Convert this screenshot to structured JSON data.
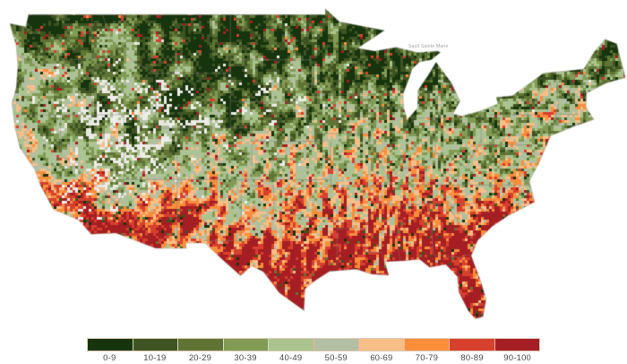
{
  "page": {
    "background": "#ffffff"
  },
  "map": {
    "name": "United States county-level choropleth map",
    "basemap_labels": [
      {
        "text": "Sault Sainte Marie"
      }
    ],
    "land_nodata_color": "#edecea",
    "state_border_color": "#827f7a",
    "water_color": "#ffffff"
  },
  "legend": {
    "bins": [
      {
        "label": "0-9",
        "color": "#16340e",
        "border": "#cddcbc"
      },
      {
        "label": "10-19",
        "color": "#3d5322",
        "border": "#cddcbc"
      },
      {
        "label": "20-29",
        "color": "#5f7434",
        "border": "#cddcbc"
      },
      {
        "label": "30-39",
        "color": "#819b55",
        "border": "#cddcbc"
      },
      {
        "label": "40-49",
        "color": "#a9c48e",
        "border": "#cddcbc"
      },
      {
        "label": "50-59",
        "color": "#b3bfa2",
        "border": "#f4b39b"
      },
      {
        "label": "60-69",
        "color": "#f7bf87",
        "border": "#f4b39b"
      },
      {
        "label": "70-79",
        "color": "#f98e3b",
        "border": "#f4b39b"
      },
      {
        "label": "80-89",
        "color": "#d8402e",
        "border": "#f4b39b"
      },
      {
        "label": "90-100",
        "color": "#a41e23",
        "border": "#f4b39b"
      }
    ]
  },
  "chart_data": {
    "type": "heatmap",
    "subtype": "choropleth_map",
    "geography": "United States counties (contiguous lower 48 states)",
    "title": "",
    "value_range": [
      0,
      100
    ],
    "bins": [
      "0-9",
      "10-19",
      "20-29",
      "30-39",
      "40-49",
      "50-59",
      "60-69",
      "70-79",
      "80-89",
      "90-100"
    ],
    "bin_colors": [
      "#16340e",
      "#3d5322",
      "#5f7434",
      "#819b55",
      "#a9c48e",
      "#b3bfa2",
      "#f7bf87",
      "#f98e3b",
      "#d8402e",
      "#a41e23"
    ],
    "scale_description": "sequential binned scale, dark green (0-9, low) through sage and peach to dark red (90-100, high)",
    "legend_position": "bottom center",
    "no_data_appearance": "white/light-gray counties, most common in the interior West",
    "regional_pattern": {
      "southeast": "predominantly 80-100 (red and dark red) with scattered orange",
      "texas_and_arizona_new_mexico": "high 70-100 (red/dark red) mixed with orange and sage",
      "northern_plains_and_upper_midwest": "low-to-mid 10-49 (greens/olive) with many white no-data counties",
      "appalachia": "pockets of very low 0-29 (dark green) amid mixed values",
      "interior_west_great_basin": "sparse data, large white/no-data areas with scattered green, orange and red",
      "pacific_northwest_and_california_coast": "mixed greens and oranges with scattered reds",
      "northeast": "greens inland with orange and red along the coastal corridor"
    }
  }
}
